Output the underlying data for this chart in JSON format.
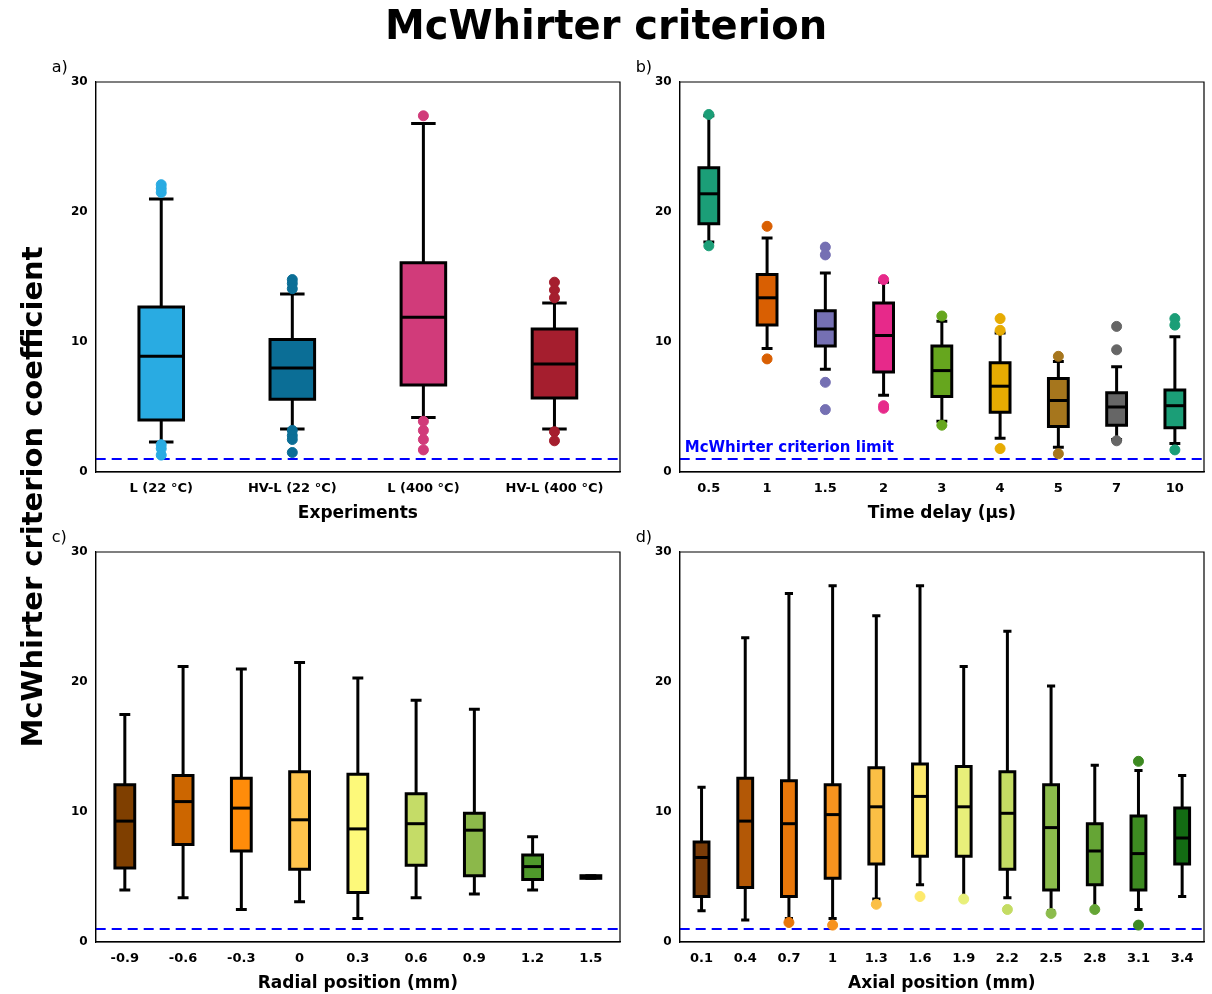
{
  "chart_data": [
    {
      "type": "box",
      "title": "McWhirter criterion",
      "ylabel": "McWhirter criterion coefficient",
      "annotations": [
        "a)"
      ],
      "xlabel": "Experiments",
      "categories": [
        "L (22 °C)",
        "HV-L (22 °C)",
        "L (400 °C)",
        "HV-L (400 °C)"
      ],
      "colors": [
        "#29abe2",
        "#0b6e96",
        "#d13b7a",
        "#a51e2e"
      ],
      "boxes": [
        {
          "low": 2.3,
          "q1": 4.0,
          "median": 8.9,
          "q3": 12.7,
          "high": 21.0,
          "outliers": [
            22.1,
            21.8,
            21.5,
            2.1,
            1.8,
            1.3
          ]
        },
        {
          "low": 3.3,
          "q1": 5.6,
          "median": 8.0,
          "q3": 10.2,
          "high": 13.7,
          "outliers": [
            14.8,
            14.5,
            14.1,
            3.2,
            2.8,
            2.5,
            1.5
          ]
        },
        {
          "low": 4.2,
          "q1": 6.7,
          "median": 11.9,
          "q3": 16.1,
          "high": 26.8,
          "outliers": [
            27.4,
            3.9,
            3.2,
            2.5,
            1.7
          ]
        },
        {
          "low": 3.3,
          "q1": 5.7,
          "median": 8.3,
          "q3": 11.0,
          "high": 13.0,
          "outliers": [
            14.6,
            14.0,
            13.4,
            3.1,
            2.4
          ]
        }
      ],
      "ylim": [
        0,
        30
      ],
      "yticks": [
        0,
        10,
        20,
        30
      ],
      "ref_lines": [
        {
          "axis": "y",
          "value": 1,
          "color": "#0000ff",
          "line_style": "dashed"
        }
      ]
    },
    {
      "type": "box",
      "annotations": [
        "b)"
      ],
      "xlabel": "Time delay (μs)",
      "categories": [
        "0.5",
        "1",
        "1.5",
        "2",
        "3",
        "4",
        "5",
        "7",
        "10"
      ],
      "colors": [
        "#1b9e77",
        "#d95f02",
        "#7570b3",
        "#e7298a",
        "#66a61e",
        "#e6ab02",
        "#a6761d",
        "#666666",
        "#1b9e77"
      ],
      "boxes": [
        {
          "low": 17.7,
          "q1": 19.1,
          "median": 21.4,
          "q3": 23.4,
          "high": 27.4,
          "outliers": [
            27.5,
            17.4
          ]
        },
        {
          "low": 9.5,
          "q1": 11.3,
          "median": 13.4,
          "q3": 15.2,
          "high": 18.0,
          "outliers": [
            18.9,
            8.7
          ]
        },
        {
          "low": 7.9,
          "q1": 9.7,
          "median": 11.0,
          "q3": 12.4,
          "high": 15.3,
          "outliers": [
            17.3,
            16.7,
            6.9,
            4.8
          ]
        },
        {
          "low": 5.9,
          "q1": 7.7,
          "median": 10.5,
          "q3": 13.0,
          "high": 14.6,
          "outliers": [
            14.8,
            5.1,
            4.9
          ]
        },
        {
          "low": 3.9,
          "q1": 5.8,
          "median": 7.8,
          "q3": 9.7,
          "high": 11.6,
          "outliers": [
            12.0,
            3.6
          ]
        },
        {
          "low": 2.6,
          "q1": 4.6,
          "median": 6.6,
          "q3": 8.4,
          "high": 10.7,
          "outliers": [
            11.8,
            10.9,
            1.8
          ]
        },
        {
          "low": 1.9,
          "q1": 3.5,
          "median": 5.5,
          "q3": 7.2,
          "high": 8.5,
          "outliers": [
            8.9,
            1.4
          ]
        },
        {
          "low": 2.5,
          "q1": 3.6,
          "median": 5.0,
          "q3": 6.1,
          "high": 8.1,
          "outliers": [
            11.2,
            9.4,
            2.4
          ]
        },
        {
          "low": 2.2,
          "q1": 3.4,
          "median": 5.1,
          "q3": 6.3,
          "high": 10.4,
          "outliers": [
            11.8,
            11.3,
            1.7
          ]
        }
      ],
      "ylim": [
        0,
        30
      ],
      "yticks": [
        0,
        10,
        20,
        30
      ],
      "ref_lines": [
        {
          "axis": "y",
          "value": 1,
          "label": "McWhirter criterion limit",
          "color": "#0000ff",
          "line_style": "dashed"
        }
      ]
    },
    {
      "type": "box",
      "annotations": [
        "c)"
      ],
      "xlabel": "Radial position (mm)",
      "categories": [
        "-0.9",
        "-0.6",
        "-0.3",
        "0",
        "0.3",
        "0.6",
        "0.9",
        "1.2",
        "1.5"
      ],
      "colors": [
        "#7f3f00",
        "#cc6600",
        "#ff8c0a",
        "#ffc44c",
        "#fdf97a",
        "#c5dc67",
        "#8cb84a",
        "#4f992b",
        "#1a1a1a"
      ],
      "boxes": [
        {
          "low": 4.0,
          "q1": 5.7,
          "median": 9.3,
          "q3": 12.1,
          "high": 17.5
        },
        {
          "low": 3.4,
          "q1": 7.5,
          "median": 10.8,
          "q3": 12.8,
          "high": 21.2
        },
        {
          "low": 2.5,
          "q1": 7.0,
          "median": 10.3,
          "q3": 12.6,
          "high": 21.0
        },
        {
          "low": 3.1,
          "q1": 5.6,
          "median": 9.4,
          "q3": 13.1,
          "high": 21.5
        },
        {
          "low": 1.8,
          "q1": 3.8,
          "median": 8.7,
          "q3": 12.9,
          "high": 20.3
        },
        {
          "low": 3.4,
          "q1": 5.9,
          "median": 9.1,
          "q3": 11.4,
          "high": 18.6
        },
        {
          "low": 3.7,
          "q1": 5.1,
          "median": 8.6,
          "q3": 9.9,
          "high": 17.9
        },
        {
          "low": 4.0,
          "q1": 4.8,
          "median": 5.8,
          "q3": 6.7,
          "high": 8.1
        },
        {
          "low": 4.9,
          "q1": 4.9,
          "median": 5.0,
          "q3": 5.1,
          "high": 5.1
        }
      ],
      "ylim": [
        0,
        30
      ],
      "yticks": [
        0,
        10,
        20,
        30
      ],
      "ref_lines": [
        {
          "axis": "y",
          "value": 1,
          "color": "#0000ff",
          "line_style": "dashed"
        }
      ]
    },
    {
      "type": "box",
      "annotations": [
        "d)"
      ],
      "xlabel": "Axial position (mm)",
      "categories": [
        "0.1",
        "0.4",
        "0.7",
        "1",
        "1.3",
        "1.6",
        "1.9",
        "2.2",
        "2.5",
        "2.8",
        "3.1",
        "3.4"
      ],
      "colors": [
        "#7a3c08",
        "#b35806",
        "#e8770a",
        "#f7931e",
        "#fbbf45",
        "#fde96b",
        "#e8f07a",
        "#c4dc63",
        "#8cbc4c",
        "#65a535",
        "#3d8a21",
        "#136b13"
      ],
      "boxes": [
        {
          "low": 2.4,
          "q1": 3.5,
          "median": 6.5,
          "q3": 7.7,
          "high": 11.9
        },
        {
          "low": 1.7,
          "q1": 4.2,
          "median": 9.3,
          "q3": 12.6,
          "high": 23.4
        },
        {
          "low": 1.8,
          "q1": 3.5,
          "median": 9.1,
          "q3": 12.4,
          "high": 26.8,
          "outliers": [
            1.5
          ]
        },
        {
          "low": 1.8,
          "q1": 4.9,
          "median": 9.8,
          "q3": 12.1,
          "high": 27.4,
          "outliers": [
            1.3
          ]
        },
        {
          "low": 3.3,
          "q1": 6.0,
          "median": 10.4,
          "q3": 13.4,
          "high": 25.1,
          "outliers": [
            2.9
          ]
        },
        {
          "low": 4.4,
          "q1": 6.6,
          "median": 11.2,
          "q3": 13.7,
          "high": 27.4,
          "outliers": [
            3.5
          ]
        },
        {
          "low": 3.3,
          "q1": 6.6,
          "median": 10.4,
          "q3": 13.5,
          "high": 21.2,
          "outliers": [
            3.3
          ]
        },
        {
          "low": 3.4,
          "q1": 5.6,
          "median": 9.9,
          "q3": 13.1,
          "high": 23.9,
          "outliers": [
            2.5
          ]
        },
        {
          "low": 2.4,
          "q1": 4.0,
          "median": 8.8,
          "q3": 12.1,
          "high": 19.7,
          "outliers": [
            2.2
          ]
        },
        {
          "low": 2.6,
          "q1": 4.4,
          "median": 7.0,
          "q3": 9.1,
          "high": 13.6,
          "outliers": [
            2.5
          ]
        },
        {
          "low": 2.5,
          "q1": 4.0,
          "median": 6.8,
          "q3": 9.7,
          "high": 13.2,
          "outliers": [
            13.9,
            1.3
          ]
        },
        {
          "low": 3.5,
          "q1": 6.0,
          "median": 8.0,
          "q3": 10.3,
          "high": 12.8
        }
      ],
      "ylim": [
        0,
        30
      ],
      "yticks": [
        0,
        10,
        20,
        30
      ],
      "ref_lines": [
        {
          "axis": "y",
          "value": 1,
          "color": "#0000ff",
          "line_style": "dashed"
        }
      ]
    }
  ]
}
